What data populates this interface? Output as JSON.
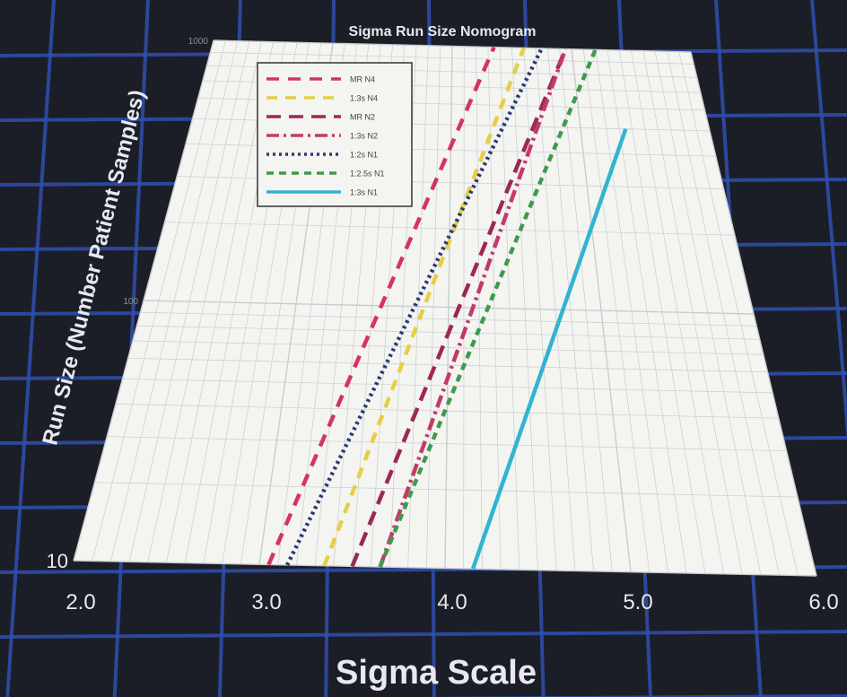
{
  "chart_data": {
    "type": "line",
    "title": "Sigma Run Size Nomogram",
    "xlabel": "Sigma Scale",
    "ylabel": "Run Size (Number Patient Samples)",
    "xlim": [
      2.0,
      6.0
    ],
    "ylim": [
      10,
      1000
    ],
    "y_scale": "log",
    "grid": true,
    "legend_position": "top-left",
    "x_ticks": [
      "2.0",
      "3.0",
      "4.0",
      "5.0",
      "6.0"
    ],
    "y_ticks": [
      {
        "value": 10,
        "label": "10"
      },
      {
        "value": 100,
        "label": "100"
      },
      {
        "value": 1000,
        "label": "1000"
      }
    ],
    "series": [
      {
        "name": "MR N4",
        "color": "#d6335f",
        "dash": "14,10",
        "x": [
          3.05,
          4.35
        ],
        "y": [
          10,
          1000
        ]
      },
      {
        "name": "1:3s N4",
        "color": "#e5cf44",
        "dash": "12,9",
        "x": [
          3.35,
          4.6
        ],
        "y": [
          10,
          1000
        ]
      },
      {
        "name": "MR N2",
        "color": "#9c2855",
        "dash": "16,9",
        "x": [
          3.5,
          4.95
        ],
        "y": [
          10,
          1000
        ]
      },
      {
        "name": "1:3s N2",
        "color": "#c23a6a",
        "dash": "14,5,3,5",
        "x": [
          3.65,
          4.95
        ],
        "y": [
          10,
          1000
        ]
      },
      {
        "name": "1:2s N1",
        "color": "#2c3a72",
        "dash": "3,4",
        "x": [
          3.15,
          4.75
        ],
        "y": [
          10,
          1000
        ]
      },
      {
        "name": "1:2.5s N1",
        "color": "#3f9a4e",
        "dash": "8,6",
        "x": [
          3.65,
          5.2
        ],
        "y": [
          10,
          1000
        ]
      },
      {
        "name": "1:3s N1",
        "color": "#31b4d0",
        "dash": "",
        "x": [
          4.15,
          5.35
        ],
        "y": [
          10,
          500
        ]
      }
    ]
  },
  "colors": {
    "background": "#1b1e26",
    "background_grid": "#2f4fb0",
    "plot_panel": "#f4f4f1",
    "plot_grid": "#c9ccd0",
    "text": "#e8e8ee"
  }
}
